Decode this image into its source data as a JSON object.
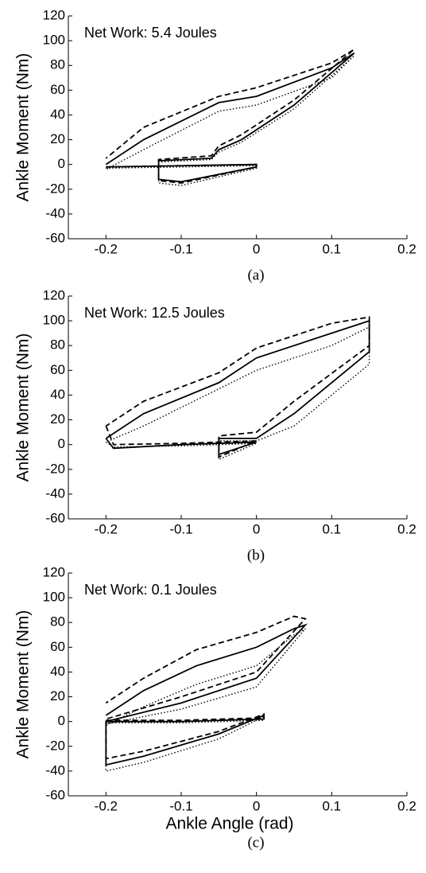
{
  "chart_data": [
    {
      "type": "line",
      "annotation": "Net Work: 5.4 Joules",
      "ylabel": "Ankle Moment (Nm)",
      "caption": "(a)",
      "xlim": [
        -0.25,
        0.2
      ],
      "xticks": [
        -0.2,
        -0.1,
        0,
        0.1,
        0.2
      ],
      "ylim": [
        -60,
        120
      ],
      "yticks": [
        -60,
        -40,
        -20,
        0,
        20,
        40,
        60,
        80,
        100,
        120
      ],
      "series": [
        {
          "color": "#000000",
          "dash": "solid",
          "x": [
            -0.2,
            -0.1,
            0,
            0,
            -0.1,
            -0.13,
            -0.13,
            -0.06,
            -0.05,
            -0.02,
            0.05,
            0.13,
            0.1,
            0,
            -0.05,
            -0.15,
            -0.2
          ],
          "values": [
            -2,
            -1,
            0,
            -2,
            -14,
            -12,
            3,
            5,
            12,
            20,
            48,
            90,
            78,
            55,
            50,
            20,
            0
          ]
        },
        {
          "color": "#000000",
          "dash": "dashed",
          "x": [
            -0.2,
            -0.1,
            0,
            0,
            -0.1,
            -0.13,
            -0.13,
            -0.06,
            -0.05,
            -0.02,
            0.05,
            0.13,
            0.1,
            0,
            -0.05,
            -0.15,
            -0.2
          ],
          "values": [
            -2,
            -1,
            0,
            -2,
            -15,
            -13,
            4,
            7,
            15,
            24,
            52,
            93,
            82,
            62,
            55,
            30,
            5
          ]
        },
        {
          "color": "#000000",
          "dash": "dotted",
          "x": [
            -0.2,
            -0.1,
            0,
            0,
            -0.1,
            -0.13,
            -0.13,
            -0.06,
            -0.05,
            -0.02,
            0.05,
            0.13,
            0.1,
            0,
            -0.05,
            -0.15,
            -0.2
          ],
          "values": [
            -3,
            -2,
            -1,
            -3,
            -17,
            -15,
            2,
            4,
            10,
            18,
            45,
            88,
            70,
            48,
            43,
            12,
            -4
          ]
        }
      ]
    },
    {
      "type": "line",
      "annotation": "Net Work: 12.5 Joules",
      "ylabel": "Ankle Moment (Nm)",
      "caption": "(b)",
      "xlim": [
        -0.25,
        0.2
      ],
      "xticks": [
        -0.2,
        -0.1,
        0,
        0.1,
        0.2
      ],
      "ylim": [
        -60,
        120
      ],
      "yticks": [
        -60,
        -40,
        -20,
        0,
        20,
        40,
        60,
        80,
        100,
        120
      ],
      "series": [
        {
          "color": "#000000",
          "dash": "solid",
          "x": [
            -0.2,
            -0.19,
            -0.1,
            0,
            -0.05,
            -0.05,
            0,
            0.05,
            0.15,
            0.15,
            0.1,
            0,
            -0.05,
            -0.15,
            -0.2
          ],
          "values": [
            5,
            -3,
            0,
            2,
            -8,
            5,
            5,
            25,
            75,
            100,
            90,
            70,
            50,
            25,
            5
          ]
        },
        {
          "color": "#000000",
          "dash": "dashed",
          "x": [
            -0.2,
            -0.19,
            -0.1,
            0,
            -0.05,
            -0.05,
            0,
            0.05,
            0.15,
            0.15,
            0.1,
            0,
            -0.05,
            -0.15,
            -0.2
          ],
          "values": [
            15,
            0,
            1,
            3,
            -10,
            7,
            10,
            35,
            80,
            103,
            98,
            78,
            58,
            35,
            15
          ]
        },
        {
          "color": "#000000",
          "dash": "dotted",
          "x": [
            -0.2,
            -0.19,
            -0.1,
            0,
            -0.05,
            -0.05,
            0,
            0.05,
            0.15,
            0.15,
            0.1,
            0,
            -0.05,
            -0.15,
            -0.2
          ],
          "values": [
            2,
            -2,
            -1,
            1,
            -12,
            3,
            3,
            15,
            65,
            95,
            80,
            60,
            45,
            15,
            2
          ]
        }
      ]
    },
    {
      "type": "line",
      "annotation": "Net Work: 0.1 Joules",
      "ylabel": "Ankle Moment (Nm)",
      "xlabel": "Ankle Angle (rad)",
      "caption": "(c)",
      "xlim": [
        -0.25,
        0.2
      ],
      "xticks": [
        -0.2,
        -0.1,
        0,
        0.1,
        0.2
      ],
      "ylim": [
        -60,
        120
      ],
      "yticks": [
        -60,
        -40,
        -20,
        0,
        20,
        40,
        60,
        80,
        100,
        120
      ],
      "series": [
        {
          "color": "#000000",
          "dash": "solid",
          "x": [
            -0.2,
            -0.1,
            0.01,
            0.01,
            -0.05,
            -0.15,
            -0.2,
            -0.2,
            -0.2,
            -0.1,
            0,
            0.065,
            0.05,
            0,
            -0.08,
            -0.15,
            -0.2
          ],
          "values": [
            0,
            0,
            2,
            5,
            -10,
            -28,
            -35,
            -15,
            0,
            15,
            35,
            78,
            75,
            60,
            45,
            25,
            5
          ]
        },
        {
          "color": "#000000",
          "dash": "dashed",
          "x": [
            -0.2,
            -0.1,
            0.01,
            0.01,
            -0.05,
            -0.15,
            -0.2,
            -0.2,
            -0.2,
            -0.1,
            0,
            0.065,
            0.05,
            0,
            -0.08,
            -0.15,
            -0.2
          ],
          "values": [
            1,
            1,
            3,
            6,
            -8,
            -24,
            -30,
            -12,
            2,
            20,
            40,
            83,
            85,
            72,
            58,
            35,
            15
          ]
        },
        {
          "color": "#000000",
          "dash": "dotted",
          "x": [
            -0.2,
            -0.1,
            0.01,
            0.01,
            -0.05,
            -0.15,
            -0.2,
            -0.2,
            -0.2,
            -0.1,
            0,
            0.065,
            0.05,
            0,
            -0.08,
            -0.15,
            -0.2
          ],
          "values": [
            -1,
            -1,
            1,
            4,
            -14,
            -33,
            -40,
            -18,
            -2,
            10,
            28,
            75,
            70,
            45,
            30,
            12,
            -3
          ]
        }
      ]
    }
  ]
}
